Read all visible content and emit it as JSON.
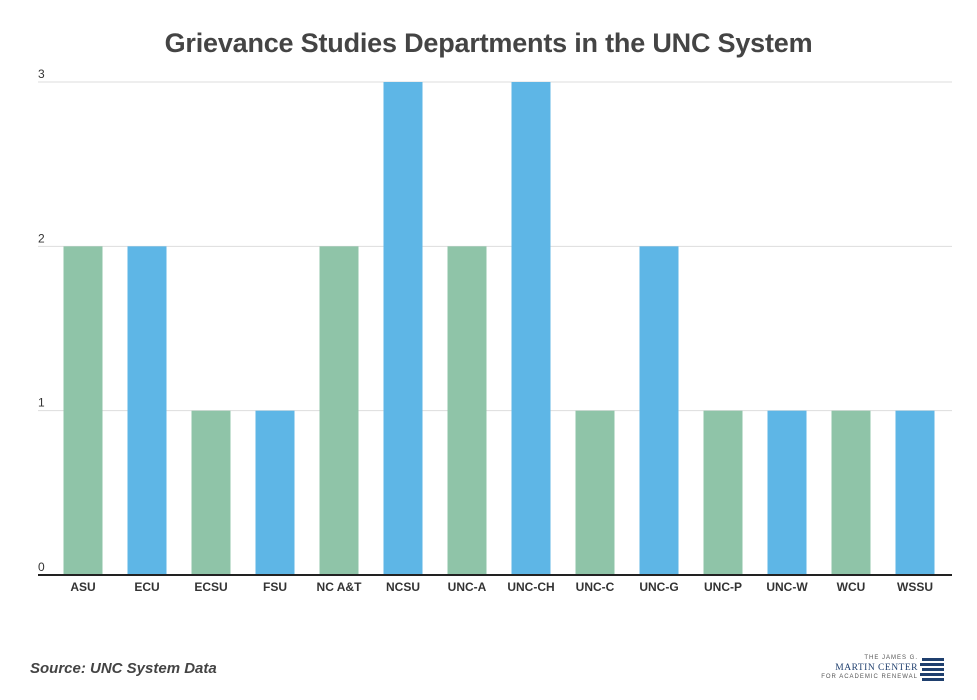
{
  "chart_data": {
    "type": "bar",
    "title": "Grievance Studies Departments in the UNC System",
    "categories": [
      "ASU",
      "ECU",
      "ECSU",
      "FSU",
      "NC A&T",
      "NCSU",
      "UNC-A",
      "UNC-CH",
      "UNC-C",
      "UNC-G",
      "UNC-P",
      "UNC-W",
      "WCU",
      "WSSU"
    ],
    "values": [
      2,
      2,
      1,
      1,
      2,
      3,
      2,
      3,
      1,
      2,
      1,
      1,
      1,
      1
    ],
    "bar_colors": [
      "#8fc4a8",
      "#5eb6e6",
      "#8fc4a8",
      "#5eb6e6",
      "#8fc4a8",
      "#5eb6e6",
      "#8fc4a8",
      "#5eb6e6",
      "#8fc4a8",
      "#5eb6e6",
      "#8fc4a8",
      "#5eb6e6",
      "#8fc4a8",
      "#5eb6e6"
    ],
    "yticks": [
      0,
      1,
      2,
      3
    ],
    "ylim": [
      0,
      3
    ],
    "xlabel": "",
    "ylabel": "",
    "grid": true
  },
  "source": "Source: UNC System Data",
  "logo": {
    "line1": "THE JAMES G.",
    "line2": "MARTIN CENTER",
    "line3": "FOR ACADEMIC RENEWAL",
    "color": "#1f3f6e"
  }
}
